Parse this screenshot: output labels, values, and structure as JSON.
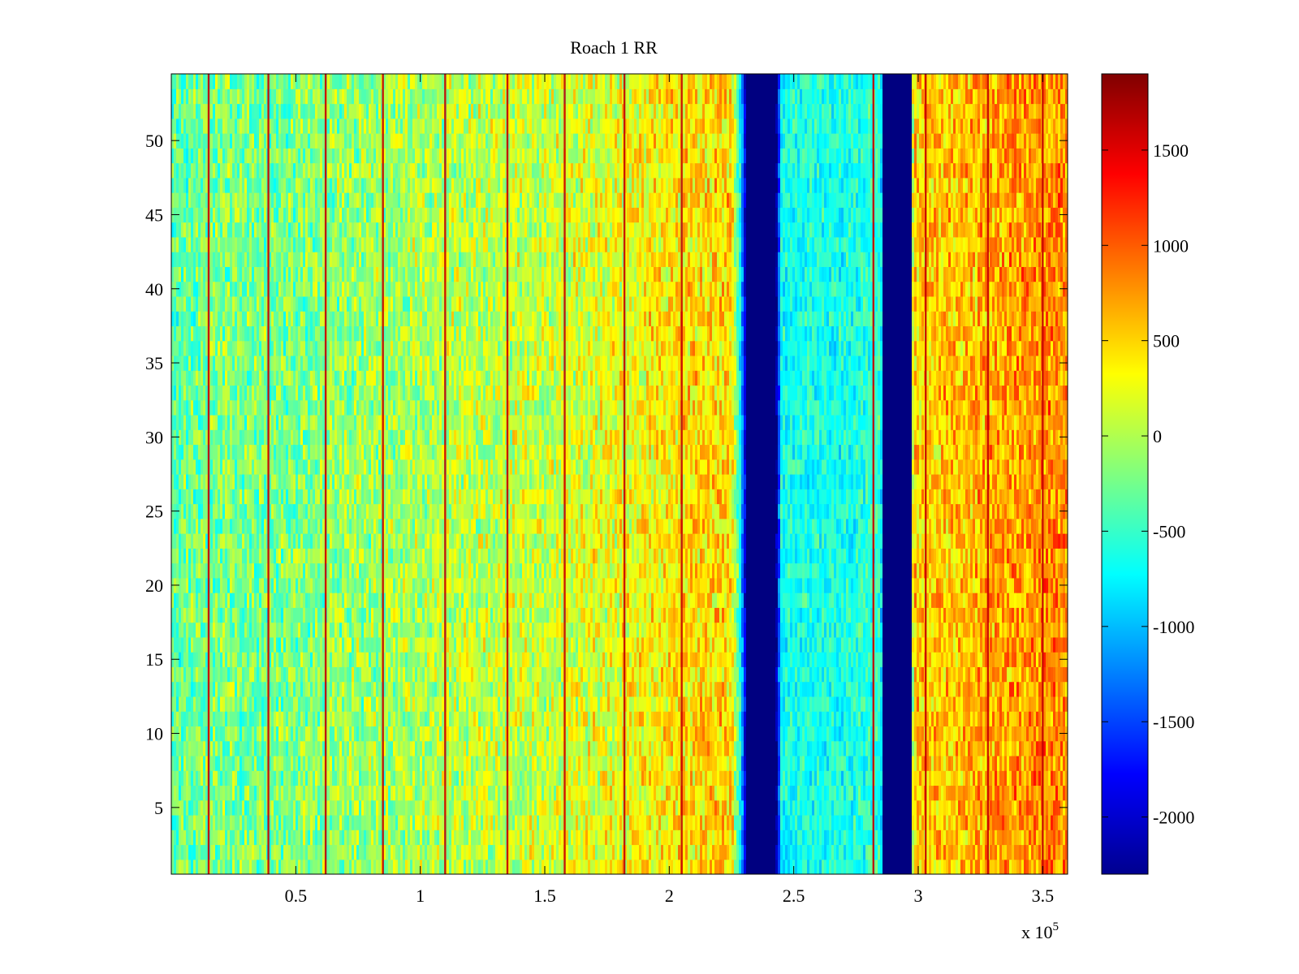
{
  "chart_data": {
    "type": "heatmap",
    "title": "Roach 1 RR",
    "colormap": "jet",
    "xlim": [
      0,
      360000
    ],
    "ylim": [
      0.5,
      54.5
    ],
    "x_exponent_label": "x 10",
    "x_exponent_power": "5",
    "x_ticks": [
      {
        "value": 0.5,
        "label": "0.5"
      },
      {
        "value": 1,
        "label": "1"
      },
      {
        "value": 1.5,
        "label": "1.5"
      },
      {
        "value": 2,
        "label": "2"
      },
      {
        "value": 2.5,
        "label": "2.5"
      },
      {
        "value": 3,
        "label": "3"
      },
      {
        "value": 3.5,
        "label": "3.5"
      }
    ],
    "y_ticks": [
      {
        "value": 5,
        "label": "5"
      },
      {
        "value": 10,
        "label": "10"
      },
      {
        "value": 15,
        "label": "15"
      },
      {
        "value": 20,
        "label": "20"
      },
      {
        "value": 25,
        "label": "25"
      },
      {
        "value": 30,
        "label": "30"
      },
      {
        "value": 35,
        "label": "35"
      },
      {
        "value": 40,
        "label": "40"
      },
      {
        "value": 45,
        "label": "45"
      },
      {
        "value": 50,
        "label": "50"
      }
    ],
    "colorbar": {
      "clim": [
        -2300,
        1900
      ],
      "ticks": [
        {
          "value": 1500,
          "label": "1500"
        },
        {
          "value": 1000,
          "label": "1000"
        },
        {
          "value": 500,
          "label": "500"
        },
        {
          "value": 0,
          "label": "0"
        },
        {
          "value": -500,
          "label": "-500"
        },
        {
          "value": -1000,
          "label": "-1000"
        },
        {
          "value": -1500,
          "label": "-1500"
        },
        {
          "value": -2000,
          "label": "-2000"
        }
      ]
    },
    "column_trend": [
      {
        "x": 0,
        "value": -350
      },
      {
        "x": 20000,
        "value": -200
      },
      {
        "x": 40000,
        "value": -250
      },
      {
        "x": 60000,
        "value": -150
      },
      {
        "x": 90000,
        "value": -50
      },
      {
        "x": 120000,
        "value": 50
      },
      {
        "x": 150000,
        "value": 100
      },
      {
        "x": 180000,
        "value": 250
      },
      {
        "x": 200000,
        "value": 400
      },
      {
        "x": 225000,
        "value": 500
      },
      {
        "x": 229000,
        "value": -900
      },
      {
        "x": 231000,
        "value": -2300
      },
      {
        "x": 243000,
        "value": -2300
      },
      {
        "x": 245000,
        "value": -700
      },
      {
        "x": 255000,
        "value": -600
      },
      {
        "x": 270000,
        "value": -650
      },
      {
        "x": 285000,
        "value": -500
      },
      {
        "x": 286000,
        "value": -2300
      },
      {
        "x": 297000,
        "value": -2300
      },
      {
        "x": 298000,
        "value": 500
      },
      {
        "x": 320000,
        "value": 600
      },
      {
        "x": 340000,
        "value": 750
      },
      {
        "x": 360000,
        "value": 800
      }
    ],
    "hot_lines_x": [
      15000,
      39000,
      62000,
      85000,
      110000,
      135000,
      158000,
      182000,
      205000,
      282000,
      303000,
      328000,
      350000
    ],
    "blank_bands": [
      [
        231000,
        243000
      ],
      [
        286000,
        297000
      ]
    ]
  }
}
